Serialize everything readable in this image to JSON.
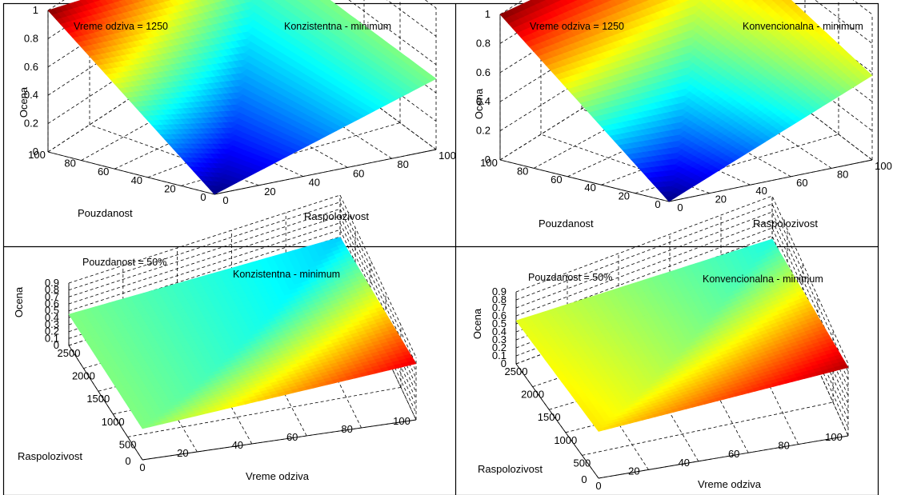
{
  "colormap": "jet",
  "colors": {
    "border": "#000000",
    "grid": "#000000",
    "background": "#ffffff"
  },
  "chart_data": [
    {
      "type": "surface",
      "annotation": "Vreme odziva = 1250",
      "method": "Konzistentna - minimum",
      "zlabel": "Ocena",
      "xlabel": "Pouzdanost",
      "ylabel": "Raspolozivost",
      "x": [
        0,
        100
      ],
      "y": [
        0,
        100
      ],
      "zlim": [
        0,
        1
      ],
      "xticks": [
        "0",
        "20",
        "40",
        "60",
        "80",
        "100"
      ],
      "yticks": [
        "0",
        "20",
        "40",
        "60",
        "80",
        "100"
      ],
      "zticks": [
        "0",
        "0.2",
        "0.4",
        "0.6",
        "0.8",
        "1"
      ],
      "z_corners": {
        "x0_y0": 0.0,
        "x100_y0": 1.0,
        "x0_y100": 0.5,
        "x100_y100": 0.5
      },
      "z_ridge": 0.5
    },
    {
      "type": "surface",
      "annotation": "Vreme odziva = 1250",
      "method": "Konvencionalna - minimum",
      "zlabel": "Ocena",
      "xlabel": "Pouzdanost",
      "ylabel": "Raspolozivost",
      "x": [
        0,
        100
      ],
      "y": [
        0,
        100
      ],
      "zlim": [
        0,
        1
      ],
      "xticks": [
        "0",
        "20",
        "40",
        "60",
        "80",
        "100"
      ],
      "yticks": [
        "0",
        "20",
        "40",
        "60",
        "80",
        "100"
      ],
      "zticks": [
        "0",
        "0.2",
        "0.4",
        "0.6",
        "0.8",
        "1"
      ],
      "z_corners": {
        "x0_y0": 0.0,
        "x100_y0": 1.0,
        "x0_y100": 0.58,
        "x100_y100": 0.8
      },
      "z_ridge": 0.75
    },
    {
      "type": "surface",
      "annotation": "Pouzdanost = 50%",
      "method": "Konzistentna - minimum",
      "zlabel": "Ocena",
      "xlabel": "Vreme odziva",
      "ylabel": "Raspolozivost",
      "x": [
        0,
        2500
      ],
      "y": [
        0,
        100
      ],
      "zlim": [
        0,
        1
      ],
      "xticks": [
        "0",
        "500",
        "1000",
        "1500",
        "2000",
        "2500"
      ],
      "yticks": [
        "0",
        "20",
        "40",
        "60",
        "80",
        "100"
      ],
      "zticks": [
        "0",
        "0.1",
        "0.2",
        "0.3",
        "0.4",
        "0.5",
        "0.6",
        "0.7",
        "0.8",
        "0.9"
      ],
      "z_corners": {
        "x0_y100": 0.9,
        "x0_y0": 0.5,
        "x2500_y0": 0.5,
        "x2500_y100": 0.15
      },
      "z_ridge": 0.5
    },
    {
      "type": "surface",
      "annotation": "Pouzdanost = 50%",
      "method": "Konvencionalna - minimum",
      "zlabel": "Ocena",
      "xlabel": "Vreme odziva",
      "ylabel": "Raspolozivost",
      "x": [
        0,
        2500
      ],
      "y": [
        0,
        100
      ],
      "zlim": [
        0,
        1
      ],
      "xticks": [
        "0",
        "500",
        "1000",
        "1500",
        "2000",
        "2500"
      ],
      "yticks": [
        "0",
        "20",
        "40",
        "60",
        "80",
        "100"
      ],
      "zticks": [
        "0",
        "0.1",
        "0.2",
        "0.3",
        "0.4",
        "0.5",
        "0.6",
        "0.7",
        "0.8",
        "0.9"
      ],
      "z_corners": {
        "x0_y100": 0.95,
        "x0_y0": 0.65,
        "x2500_y0": 0.6,
        "x2500_y100": 0.15
      },
      "z_ridge": 0.65
    }
  ]
}
